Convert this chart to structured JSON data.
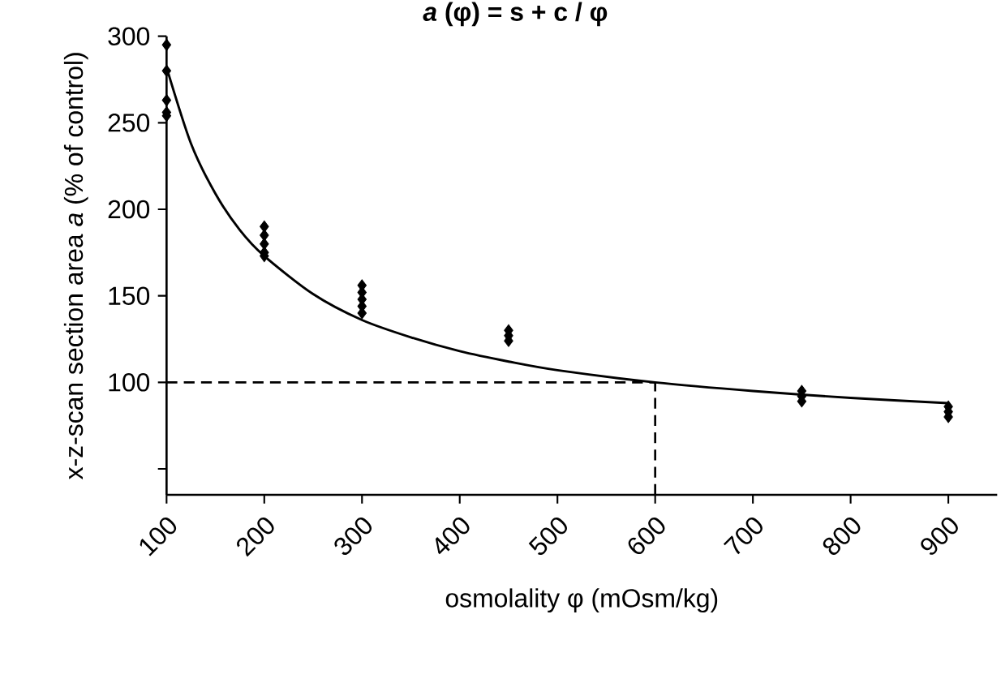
{
  "chart_data": {
    "type": "scatter",
    "title": "*a* (φ) = s + c / φ",
    "xlabel": "osmolality φ (mOsm/kg)",
    "ylabel": "x-z-scan section area *a* (% of control)",
    "xlim": [
      100,
      950
    ],
    "xticks": [
      100,
      200,
      300,
      400,
      500,
      600,
      700,
      800,
      900
    ],
    "ylim": [
      35,
      300
    ],
    "yticks": [
      {
        "value": 50,
        "label": null
      },
      100,
      150,
      200,
      250,
      300
    ],
    "marker": "diamond",
    "ref_lines": [
      {
        "axis": "y",
        "value": 100,
        "line_style": "dashed",
        "color": "#000000"
      },
      {
        "axis": "x",
        "value": 600,
        "line_style": "dashed",
        "color": "#000000"
      }
    ],
    "series": [
      {
        "color": "#000000",
        "x": [
          100,
          100,
          100,
          100,
          100,
          200,
          200,
          200,
          200,
          200,
          300,
          300,
          300,
          300,
          300,
          450,
          450,
          450,
          750,
          750,
          750,
          900,
          900,
          900
        ],
        "values": [
          295,
          280,
          263,
          256,
          254,
          190,
          185,
          180,
          175,
          173,
          156,
          152,
          148,
          144,
          140,
          130,
          127,
          124,
          95,
          92,
          89,
          86,
          83,
          80
        ]
      },
      {
        "type": "line",
        "color": "#000000",
        "line_style": "solid",
        "marker": "none",
        "x": [
          100,
          125,
          150,
          175,
          200,
          250,
          300,
          350,
          400,
          450,
          500,
          600,
          700,
          800,
          900
        ],
        "values": [
          282,
          238,
          209,
          188,
          173,
          151,
          136,
          126,
          118,
          112,
          107,
          100,
          95,
          91,
          88
        ]
      }
    ]
  }
}
